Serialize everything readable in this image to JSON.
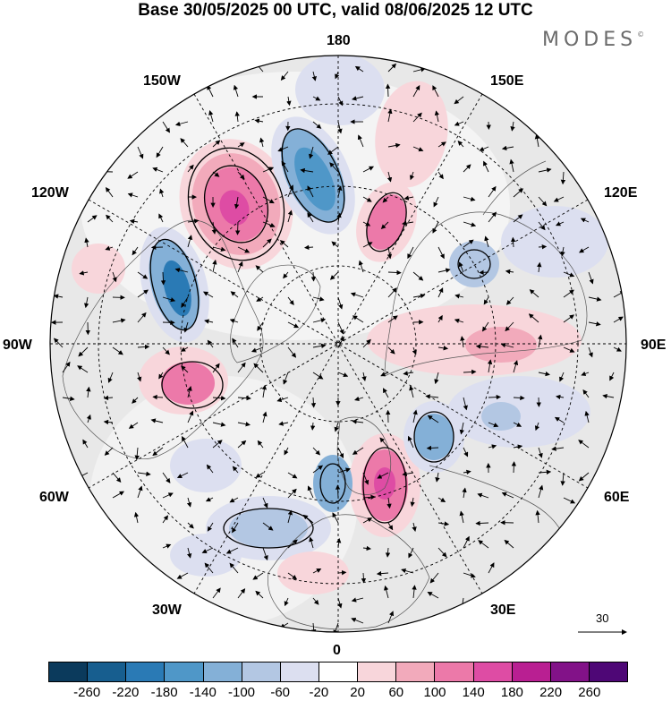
{
  "title": "Base 30/05/2025 00 UTC, valid 08/06/2025 12 UTC",
  "brand": {
    "name": "MODES",
    "mark": "©"
  },
  "map": {
    "projection": "north polar stereographic",
    "longitude_labels": {
      "top": "180",
      "bottom": "0",
      "left": "90W",
      "right": "90E",
      "upper_left_outer": "150W",
      "upper_left": "120W",
      "upper_right_outer": "150E",
      "upper_right": "120E",
      "lower_left": "60W",
      "lower_left_outer": "30W",
      "lower_right": "60E",
      "lower_right_outer": "30E"
    },
    "wind_reference": {
      "value": "30",
      "icon": "arrow-right-icon"
    }
  },
  "colorbar": {
    "colors": [
      "#0b3a5c",
      "#175e8f",
      "#2a7ab5",
      "#4f97c8",
      "#84b0d7",
      "#b3c7e3",
      "#dcdff0",
      "#ffffff",
      "#f8d6db",
      "#f2aabb",
      "#ec79a9",
      "#de4ca4",
      "#b91f92",
      "#821288",
      "#4e0776"
    ],
    "tick_labels": [
      "-260",
      "-220",
      "-180",
      "-140",
      "-100",
      "-60",
      "-20",
      "20",
      "60",
      "100",
      "140",
      "180",
      "220",
      "260"
    ]
  }
}
